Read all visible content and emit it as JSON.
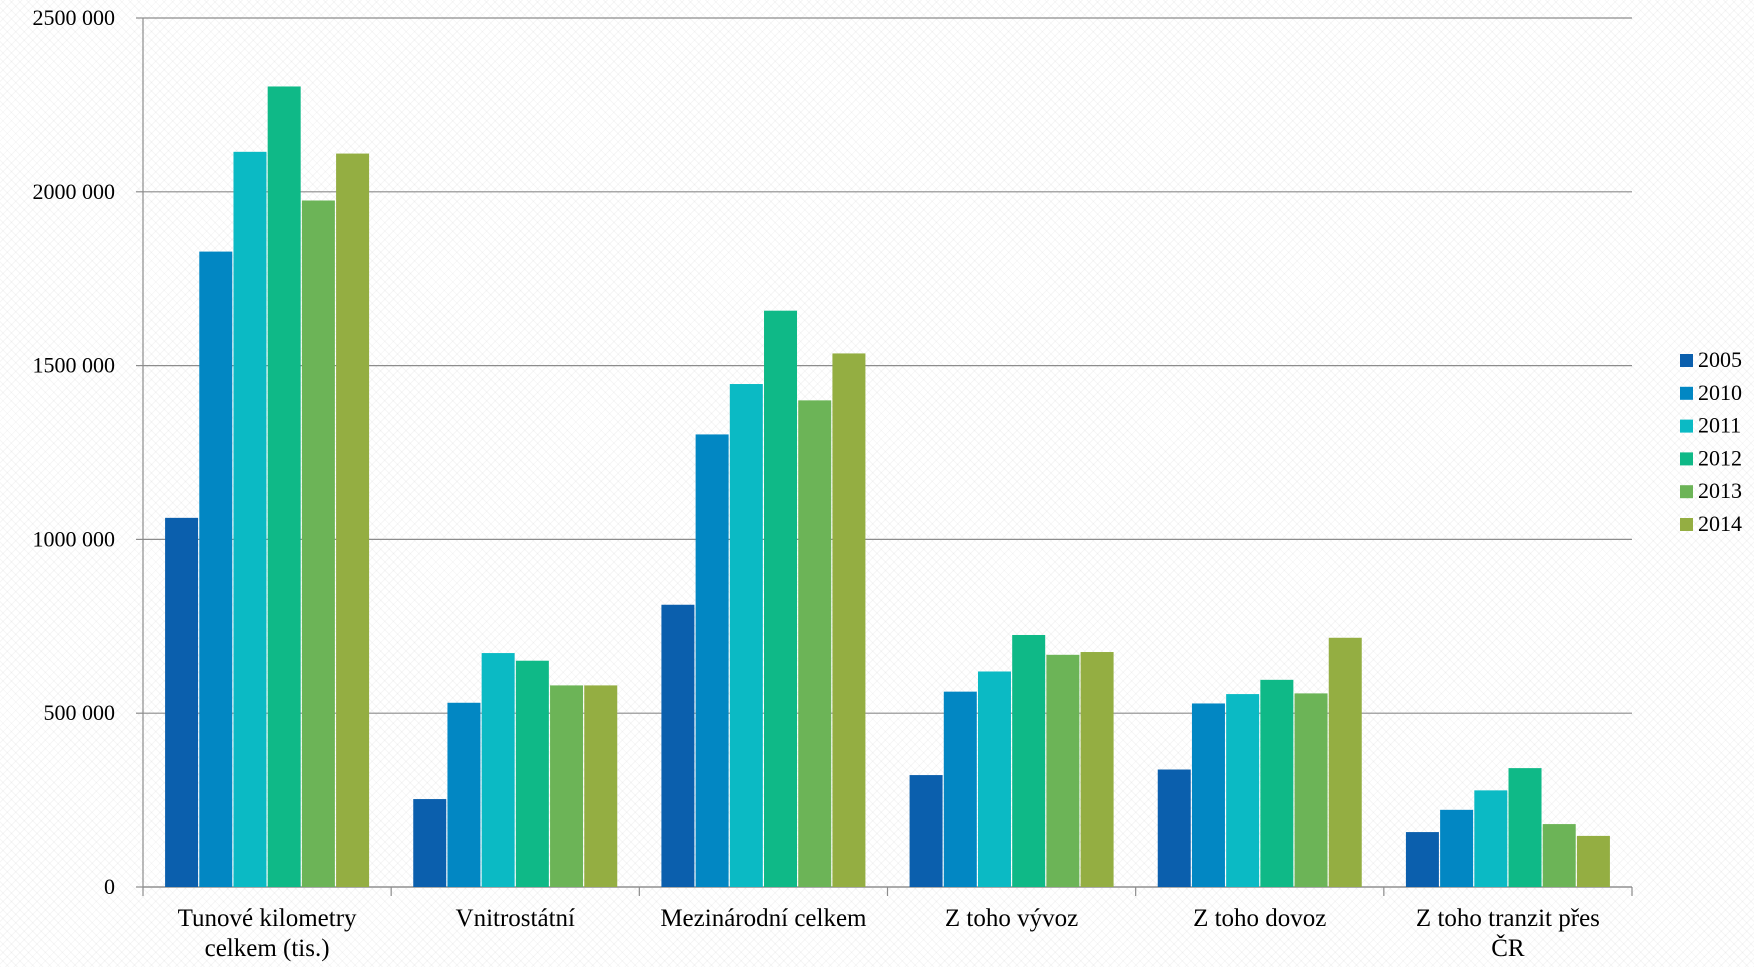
{
  "chart_data": {
    "type": "bar",
    "categories": [
      [
        "Tunové kilometry",
        "celkem (tis.)"
      ],
      [
        "Vnitrostátní"
      ],
      [
        "Mezinárodní celkem"
      ],
      [
        "Z toho vývoz"
      ],
      [
        "Z toho dovoz"
      ],
      [
        "Z toho tranzit přes",
        "ČR"
      ]
    ],
    "series": [
      {
        "name": "2005",
        "color": "#0b5fad",
        "values": [
          1062000,
          253000,
          812000,
          322000,
          338000,
          158000
        ]
      },
      {
        "name": "2010",
        "color": "#0287c3",
        "values": [
          1828000,
          530000,
          1302000,
          562000,
          528000,
          222000
        ]
      },
      {
        "name": "2011",
        "color": "#0bbac4",
        "values": [
          2115000,
          673000,
          1447000,
          620000,
          555000,
          278000
        ]
      },
      {
        "name": "2012",
        "color": "#0fb987",
        "values": [
          2303000,
          651000,
          1658000,
          725000,
          596000,
          342000
        ]
      },
      {
        "name": "2013",
        "color": "#6cb457",
        "values": [
          1975000,
          580000,
          1400000,
          668000,
          557000,
          181000
        ]
      },
      {
        "name": "2014",
        "color": "#94ae42",
        "values": [
          2110000,
          580000,
          1535000,
          676000,
          717000,
          147000
        ]
      }
    ],
    "ylim": [
      0,
      2500000
    ],
    "yticks": [
      "0",
      "500 000",
      "1000 000",
      "1500 000",
      "2000 000",
      "2500 000"
    ],
    "grid": true,
    "legend": "right",
    "xlabel": "",
    "ylabel": ""
  }
}
